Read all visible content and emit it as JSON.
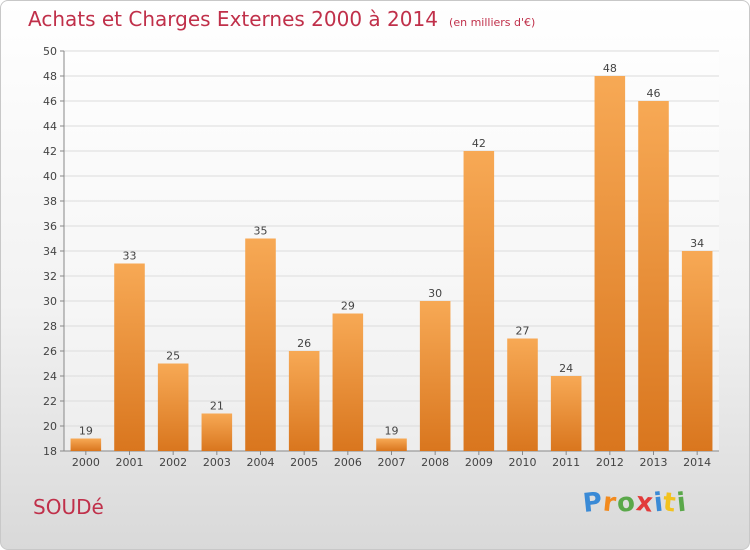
{
  "chart_data": {
    "type": "bar",
    "title": "Achats et Charges Externes 2000 à 2014",
    "subtitle": "(en milliers d'€)",
    "categories": [
      "2000",
      "2001",
      "2002",
      "2003",
      "2004",
      "2005",
      "2006",
      "2007",
      "2008",
      "2009",
      "2010",
      "2011",
      "2012",
      "2013",
      "2014"
    ],
    "values": [
      19,
      33,
      25,
      21,
      35,
      26,
      29,
      19,
      30,
      42,
      27,
      24,
      48,
      46,
      34
    ],
    "ylim": [
      18,
      50
    ],
    "yticks": [
      18,
      20,
      22,
      24,
      26,
      28,
      30,
      32,
      34,
      36,
      38,
      40,
      42,
      44,
      46,
      48,
      50
    ],
    "grid": "horizontal",
    "bar_color_light": "#f7a955",
    "bar_color_dark": "#d9761e"
  },
  "footer": {
    "town": "SOUDé",
    "logo_letters": [
      {
        "ch": "P",
        "color": "#3a8ad6"
      },
      {
        "ch": "r",
        "color": "#f28a1e"
      },
      {
        "ch": "o",
        "color": "#5aa84a"
      },
      {
        "ch": "x",
        "color": "#e23a3a"
      },
      {
        "ch": "i",
        "color": "#3a8ad6"
      },
      {
        "ch": "t",
        "color": "#f2c21e"
      },
      {
        "ch": "i",
        "color": "#5aa84a"
      }
    ]
  }
}
